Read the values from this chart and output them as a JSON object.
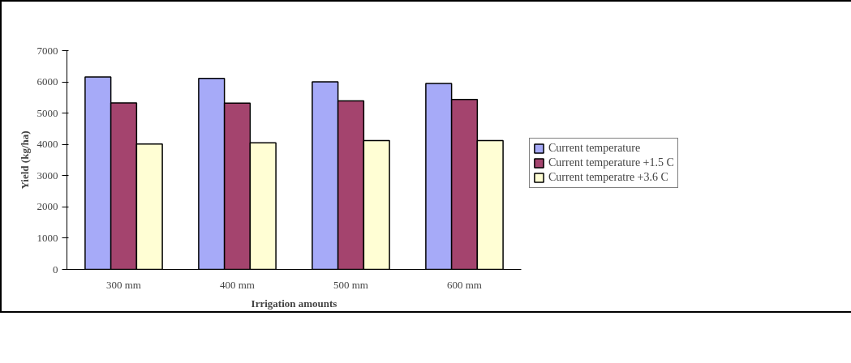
{
  "chart_data": {
    "type": "bar",
    "xlabel": "Irrigation amounts",
    "ylabel": "Yield (kg/ha)",
    "categories": [
      "300 mm",
      "400 mm",
      "500 mm",
      "600 mm"
    ],
    "series": [
      {
        "name": "Current temperature",
        "color": "#a6aaf8",
        "values": [
          6160,
          6110,
          6000,
          5950
        ]
      },
      {
        "name": "Current temperature +1.5 C",
        "color": "#a4446e",
        "values": [
          5330,
          5320,
          5390,
          5440
        ]
      },
      {
        "name": "Current temperatre +3.6 C",
        "color": "#fffed4",
        "values": [
          4010,
          4050,
          4120,
          4120
        ]
      }
    ],
    "ylim": [
      0,
      7000
    ],
    "yticks": [
      0,
      1000,
      2000,
      3000,
      4000,
      5000,
      6000,
      7000
    ],
    "grid": false,
    "legend": "right"
  }
}
